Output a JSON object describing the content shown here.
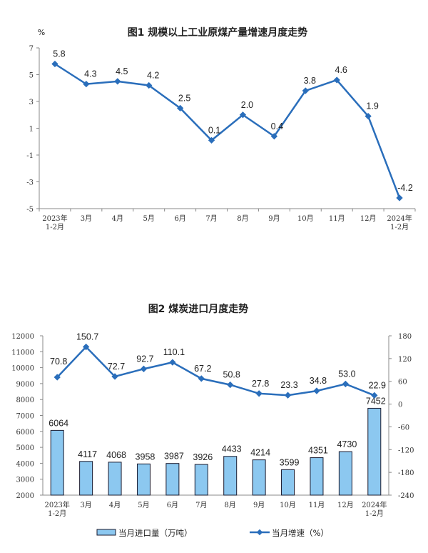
{
  "colors": {
    "line": "#2a6ebb",
    "bar_fill": "#8cc8f0",
    "bar_stroke": "#1a1a2e",
    "axis": "#888888"
  },
  "chart_data": [
    {
      "type": "line",
      "title": "图1  规模以上工业原煤产量增速月度走势",
      "ylabel": "%",
      "categories": [
        "2023年\n1-2月",
        "3月",
        "4月",
        "5月",
        "6月",
        "7月",
        "8月",
        "9月",
        "10月",
        "11月",
        "12月",
        "2024年\n1-2月"
      ],
      "values": [
        5.8,
        4.3,
        4.5,
        4.2,
        2.5,
        0.1,
        2.0,
        0.4,
        3.8,
        4.6,
        1.9,
        -4.2
      ],
      "data_labels": [
        "5.8",
        "4.3",
        "4.5",
        "4.2",
        "2.5",
        "0.1",
        "2.0",
        "0.4",
        "3.8",
        "4.6",
        "1.9",
        "-4.2"
      ],
      "ylim": [
        -5,
        7
      ],
      "yticks": [
        "7",
        "5",
        "3",
        "1",
        "-1",
        "-3",
        "-5"
      ],
      "grid": false,
      "marker": "diamond"
    },
    {
      "type": "bar+line",
      "title": "图2  煤炭进口月度走势",
      "categories": [
        "2023年\n1-2月",
        "3月",
        "4月",
        "5月",
        "6月",
        "7月",
        "8月",
        "9月",
        "10月",
        "11月",
        "12月",
        "2024年\n1-2月"
      ],
      "series": [
        {
          "name": "当月进口量（万吨）",
          "type": "bar",
          "axis": "left",
          "values": [
            6064,
            4117,
            4068,
            3958,
            3987,
            3926,
            4433,
            4214,
            3599,
            4351,
            4730,
            7452
          ],
          "data_labels": [
            "6064",
            "4117",
            "4068",
            "3958",
            "3987",
            "3926",
            "4433",
            "4214",
            "3599",
            "4351",
            "4730",
            "7452"
          ]
        },
        {
          "name": "当月增速（%）",
          "type": "line",
          "axis": "right",
          "values": [
            70.8,
            150.7,
            72.7,
            92.7,
            110.1,
            67.2,
            50.8,
            27.8,
            23.3,
            34.8,
            53.0,
            22.9
          ],
          "data_labels": [
            "70.8",
            "150.7",
            "72.7",
            "92.7",
            "110.1",
            "67.2",
            "50.8",
            "27.8",
            "23.3",
            "34.8",
            "53.0",
            "22.9"
          ]
        }
      ],
      "ylim_left": [
        2000,
        12000
      ],
      "yticks_left": [
        "12000",
        "11000",
        "10000",
        "9000",
        "8000",
        "7000",
        "6000",
        "5000",
        "4000",
        "3000",
        "2000"
      ],
      "ylim_right": [
        -240,
        180
      ],
      "yticks_right": [
        "180",
        "120",
        "60",
        "0",
        "-60",
        "-120",
        "-180",
        "-240"
      ],
      "grid": false,
      "legend": "bottom"
    }
  ]
}
